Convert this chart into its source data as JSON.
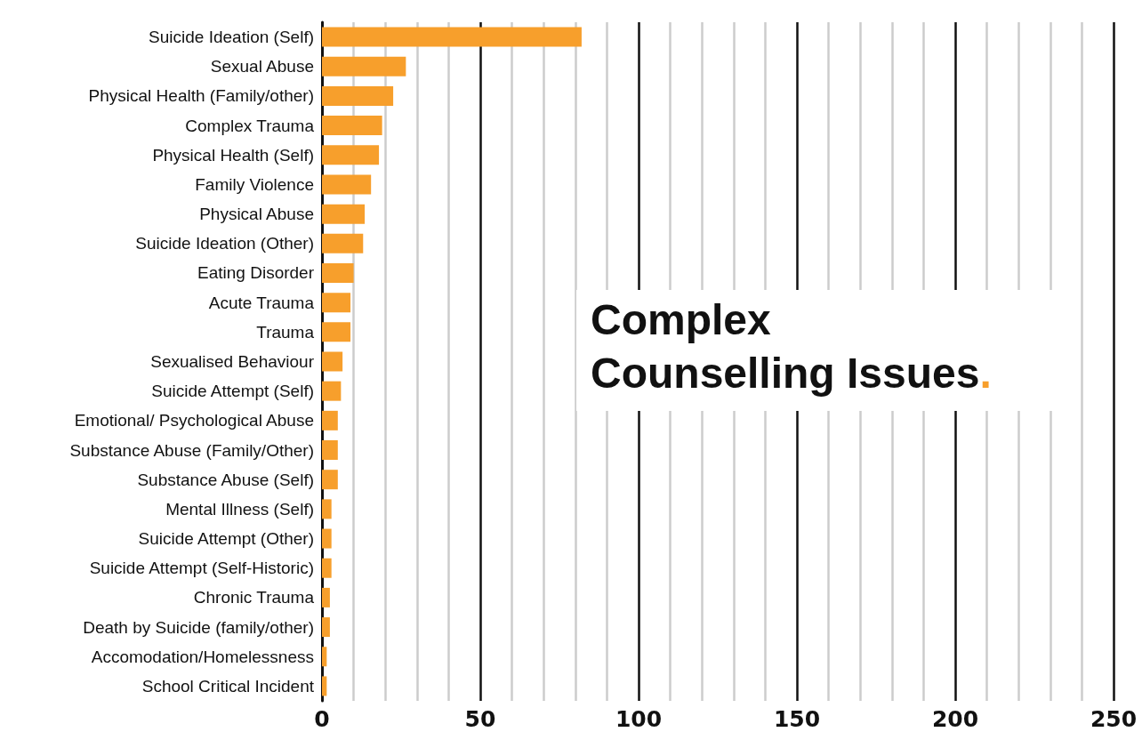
{
  "chart_data": {
    "type": "bar",
    "orientation": "horizontal",
    "title": "Complex Counselling Issues.",
    "categories": [
      "Suicide Ideation (Self)",
      "Sexual Abuse",
      "Physical Health (Family/other)",
      "Complex Trauma",
      "Physical Health (Self)",
      "Family Violence",
      "Physical Abuse",
      "Suicide Ideation (Other)",
      "Eating Disorder",
      "Acute Trauma",
      "Trauma",
      "Sexualised Behaviour",
      "Suicide Attempt (Self)",
      "Emotional/ Psychological Abuse",
      "Substance Abuse (Family/Other)",
      "Substance Abuse (Self)",
      "Mental Illness (Self)",
      "Suicide Attempt (Other)",
      "Suicide Attempt (Self-Historic)",
      "Chronic Trauma",
      "Death by Suicide (family/other)",
      "Accomodation/Homelessness",
      "School Critical Incident"
    ],
    "values": [
      82,
      26.5,
      22.5,
      19,
      18,
      15.5,
      13.5,
      13,
      10,
      9,
      9,
      6.5,
      6,
      5,
      5,
      5,
      3,
      3,
      3,
      2.5,
      2.5,
      1.5,
      1.5
    ],
    "color": "#f79f2c",
    "xlim": [
      0,
      250
    ],
    "xticks": [
      0,
      {
        "value": 10,
        "label": null
      },
      {
        "value": 20,
        "label": null
      },
      {
        "value": 30,
        "label": null
      },
      {
        "value": 40,
        "label": null
      },
      50,
      {
        "value": 60,
        "label": null
      },
      {
        "value": 70,
        "label": null
      },
      {
        "value": 80,
        "label": null
      },
      {
        "value": 90,
        "label": null
      },
      100,
      {
        "value": 110,
        "label": null
      },
      {
        "value": 120,
        "label": null
      },
      {
        "value": 130,
        "label": null
      },
      {
        "value": 140,
        "label": null
      },
      150,
      {
        "value": 160,
        "label": null
      },
      {
        "value": 170,
        "label": null
      },
      {
        "value": 180,
        "label": null
      },
      {
        "value": 190,
        "label": null
      },
      200,
      {
        "value": 210,
        "label": null
      },
      {
        "value": 220,
        "label": null
      },
      {
        "value": 230,
        "label": null
      },
      {
        "value": 240,
        "label": null
      },
      250
    ],
    "grid": "x"
  }
}
